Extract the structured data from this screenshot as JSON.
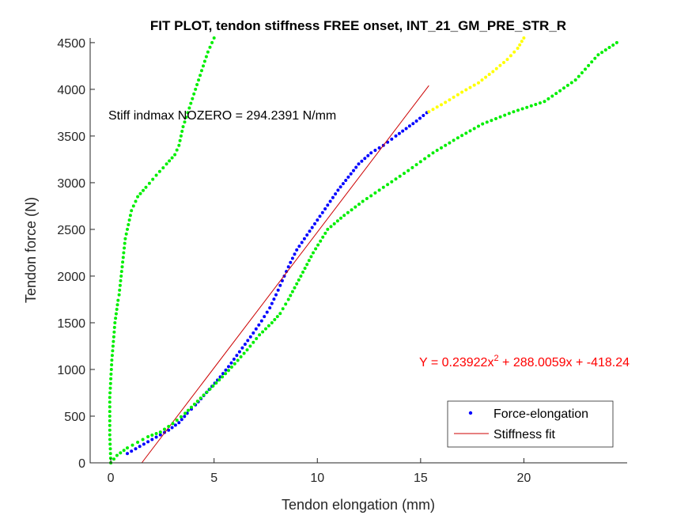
{
  "chart_data": {
    "type": "scatter",
    "title": "FIT PLOT, tendon stiffness FREE onset, INT_21_GM_PRE_STR_R",
    "xlabel": "Tendon elongation (mm)",
    "ylabel": "Tendon force (N)",
    "xlim": [
      -1,
      25
    ],
    "ylim": [
      0,
      4550
    ],
    "xticks": [
      0,
      5,
      10,
      15,
      20
    ],
    "yticks": [
      0,
      500,
      1000,
      1500,
      2000,
      2500,
      3000,
      3500,
      4000,
      4500
    ],
    "grid": false,
    "legend_position": "bottom-right",
    "annotations": {
      "stiffness_text": "Stiff indmax NOZERO = 294.2391 N/mm",
      "equation_prefix": "Y = 0.23922x",
      "equation_sup": "2",
      "equation_suffix": " + 288.0059x + -418.24"
    },
    "series": [
      {
        "name": "Force-elongation",
        "style": "dots",
        "color": "#0000ff",
        "x": [
          0.8,
          1.2,
          1.6,
          2.0,
          2.4,
          2.8,
          3.3,
          3.7,
          4.1,
          4.5,
          4.9,
          5.3,
          5.7,
          6.1,
          6.5,
          6.9,
          7.3,
          7.7,
          8.0,
          8.3,
          8.6,
          9.0,
          9.5,
          10.0,
          10.5,
          11.0,
          11.5,
          12.0,
          12.6,
          13.2,
          13.8,
          14.3,
          14.8,
          15.3
        ],
        "y": [
          100,
          150,
          200,
          250,
          300,
          350,
          430,
          530,
          620,
          720,
          820,
          920,
          1030,
          1150,
          1270,
          1390,
          1520,
          1660,
          1800,
          1950,
          2100,
          2280,
          2440,
          2600,
          2760,
          2920,
          3060,
          3200,
          3320,
          3400,
          3500,
          3580,
          3660,
          3750
        ]
      },
      {
        "name": "Stiffness fit",
        "style": "line",
        "color": "#cc0000",
        "x": [
          1.5,
          15.4
        ],
        "y": [
          0,
          4040
        ]
      },
      {
        "style": "dots",
        "color": "#00ee00",
        "x": [
          0.0,
          -0.05,
          -0.05,
          0.05,
          0.2,
          0.35,
          0.4,
          0.5,
          0.7,
          1.0,
          1.3,
          1.7,
          2.2,
          2.7,
          3.1,
          3.3,
          3.5,
          3.8,
          4.1,
          4.4,
          4.7,
          5.0
        ],
        "y": [
          0,
          300,
          700,
          1100,
          1500,
          1740,
          1800,
          2000,
          2400,
          2700,
          2850,
          2950,
          3080,
          3200,
          3300,
          3400,
          3600,
          3800,
          4000,
          4200,
          4400,
          4550
        ]
      },
      {
        "style": "dots",
        "color": "#00ee00",
        "x": [
          0.0,
          0.3,
          0.8,
          1.3,
          1.8,
          2.4,
          3.0,
          3.6,
          4.2,
          4.8,
          5.4,
          6.0,
          6.6,
          7.2,
          7.8,
          8.2,
          8.6,
          9.2,
          9.8,
          10.5,
          11.3,
          12.2,
          13.2,
          14.4,
          15.6,
          16.8,
          18.0,
          19.5,
          21.0,
          22.5,
          23.6,
          24.5
        ],
        "y": [
          0,
          80,
          160,
          220,
          280,
          330,
          420,
          530,
          660,
          790,
          920,
          1060,
          1210,
          1370,
          1500,
          1600,
          1750,
          2000,
          2250,
          2500,
          2650,
          2800,
          2950,
          3130,
          3320,
          3480,
          3630,
          3760,
          3870,
          4100,
          4370,
          4500
        ]
      },
      {
        "style": "dots",
        "color": "#ffff00",
        "x": [
          15.4,
          16.2,
          17.0,
          17.8,
          18.5,
          19.2,
          19.7,
          20.0
        ],
        "y": [
          3760,
          3860,
          3970,
          4070,
          4190,
          4320,
          4440,
          4550
        ]
      }
    ]
  }
}
